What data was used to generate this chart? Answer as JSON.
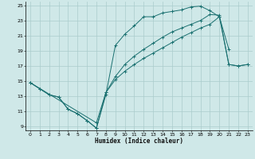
{
  "xlabel": "Humidex (Indice chaleur)",
  "bg_color": "#cfe8e8",
  "grid_color": "#aacccc",
  "line_color": "#1a7070",
  "xlim": [
    -0.5,
    23.5
  ],
  "ylim": [
    8.5,
    25.5
  ],
  "xticks": [
    0,
    1,
    2,
    3,
    4,
    5,
    6,
    7,
    8,
    9,
    10,
    11,
    12,
    13,
    14,
    15,
    16,
    17,
    18,
    19,
    20,
    21,
    22,
    23
  ],
  "yticks": [
    9,
    11,
    13,
    15,
    17,
    19,
    21,
    23,
    25
  ],
  "line1_x": [
    0,
    1,
    2,
    3,
    4,
    5,
    6,
    7,
    8,
    9,
    10,
    11,
    12,
    13,
    14,
    15,
    16,
    17,
    18,
    19,
    20,
    21
  ],
  "line1_y": [
    14.8,
    14.0,
    13.2,
    12.9,
    11.3,
    10.7,
    9.8,
    8.8,
    13.2,
    19.7,
    21.2,
    22.3,
    23.5,
    23.5,
    24.0,
    24.2,
    24.4,
    24.8,
    24.9,
    24.3,
    23.5,
    19.2
  ],
  "line2_x": [
    0,
    1,
    2,
    3,
    4,
    5,
    6,
    7,
    8,
    9,
    10,
    11,
    12,
    13,
    14,
    15,
    16,
    17,
    18,
    19,
    20,
    21,
    22,
    23
  ],
  "line2_y": [
    14.8,
    14.0,
    13.2,
    12.9,
    11.3,
    10.7,
    9.8,
    8.8,
    13.5,
    15.2,
    16.3,
    17.2,
    18.0,
    18.7,
    19.4,
    20.1,
    20.8,
    21.4,
    22.0,
    22.5,
    23.5,
    17.2,
    17.0,
    17.2
  ],
  "line3_x": [
    0,
    7,
    8,
    9,
    10,
    11,
    12,
    13,
    14,
    15,
    16,
    17,
    18,
    19,
    20,
    21,
    22,
    23
  ],
  "line3_y": [
    14.8,
    9.5,
    13.5,
    15.6,
    17.2,
    18.3,
    19.2,
    20.0,
    20.8,
    21.5,
    22.0,
    22.5,
    23.0,
    23.8,
    23.7,
    17.2,
    17.0,
    17.2
  ]
}
